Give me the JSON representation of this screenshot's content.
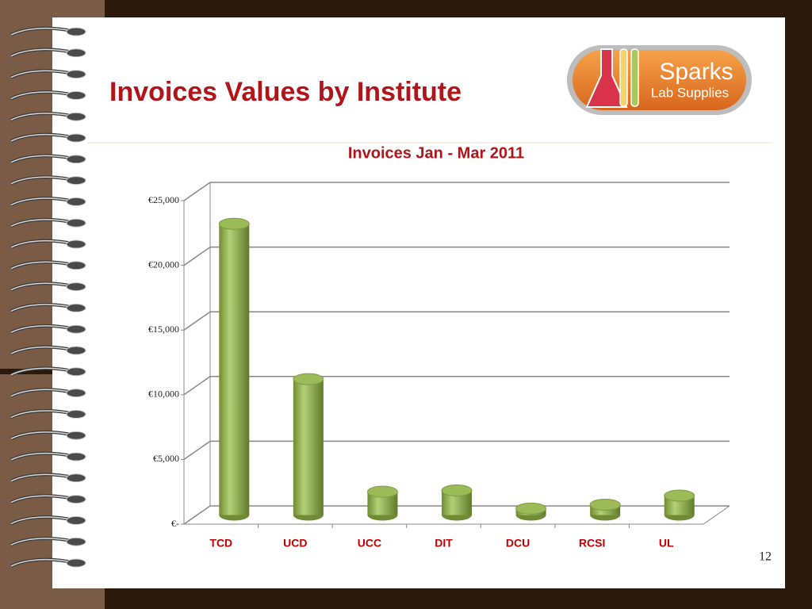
{
  "slide": {
    "title": "Invoices Values by Institute",
    "logo_name": "Sparks",
    "logo_tagline": "Lab Supplies",
    "page_number": "12"
  },
  "chart_data": {
    "type": "bar",
    "title": "Invoices Jan - Mar 2011",
    "categories": [
      "TCD",
      "UCD",
      "UCC",
      "DIT",
      "DCU",
      "RCSI",
      "UL"
    ],
    "values": [
      22500,
      10500,
      1800,
      1900,
      500,
      800,
      1500
    ],
    "color": "#9bbb59",
    "ylim": [
      0,
      25000
    ],
    "yticks": [
      {
        "value": 0,
        "label": "€-"
      },
      {
        "value": 5000,
        "label": "€5,000"
      },
      {
        "value": 10000,
        "label": "€10,000"
      },
      {
        "value": 15000,
        "label": "€15,000"
      },
      {
        "value": 20000,
        "label": "€20,000"
      },
      {
        "value": 25000,
        "label": "€25,000"
      }
    ],
    "grid": true
  }
}
